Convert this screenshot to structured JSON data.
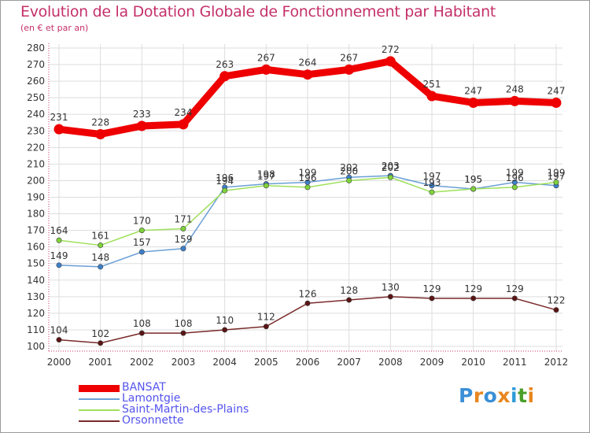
{
  "title": "Evolution de la Dotation Globale de Fonctionnement par Habitant",
  "subtitle": "(en € et par an)",
  "colors": {
    "title": "#c4306a",
    "axis_text": "#333333",
    "grid": "#dddddd",
    "legend_text": "#5454ee"
  },
  "logo": {
    "text": "Proxiti",
    "letter_colors": [
      "#3a8fd6",
      "#e8861e",
      "#3a8fd6",
      "#e8861e",
      "#2f9bd8",
      "#4a9f2a",
      "#e8861e"
    ]
  },
  "chart_data": {
    "type": "line",
    "x": [
      2000,
      2001,
      2002,
      2003,
      2004,
      2005,
      2006,
      2007,
      2008,
      2009,
      2010,
      2011,
      2012
    ],
    "ylim": [
      100,
      280
    ],
    "yticks": [
      100,
      110,
      120,
      130,
      140,
      150,
      160,
      170,
      180,
      190,
      200,
      210,
      220,
      230,
      240,
      250,
      260,
      270,
      280
    ],
    "grid": true,
    "legend_position": "bottom-left",
    "series": [
      {
        "name": "BANSAT",
        "color": "#ee0000",
        "marker": "#ee0000",
        "width": 9,
        "values": [
          231,
          228,
          233,
          234,
          263,
          267,
          264,
          267,
          272,
          251,
          247,
          248,
          247
        ]
      },
      {
        "name": "Lamontgie",
        "color": "#6b9fd6",
        "marker": "#3d7fc9",
        "width": 1.5,
        "values": [
          149,
          148,
          157,
          159,
          196,
          198,
          199,
          202,
          203,
          197,
          195,
          199,
          197
        ]
      },
      {
        "name": "Saint-Martin-des-Plains",
        "color": "#9ee05a",
        "marker": "#7fd33a",
        "width": 1.5,
        "values": [
          164,
          161,
          170,
          171,
          194,
          197,
          196,
          200,
          202,
          193,
          195,
          196,
          199
        ]
      },
      {
        "name": "Orsonnette",
        "color": "#7a2a2a",
        "marker": "#5a1414",
        "width": 1.5,
        "values": [
          104,
          102,
          108,
          108,
          110,
          112,
          126,
          128,
          130,
          129,
          129,
          129,
          122
        ]
      }
    ]
  }
}
